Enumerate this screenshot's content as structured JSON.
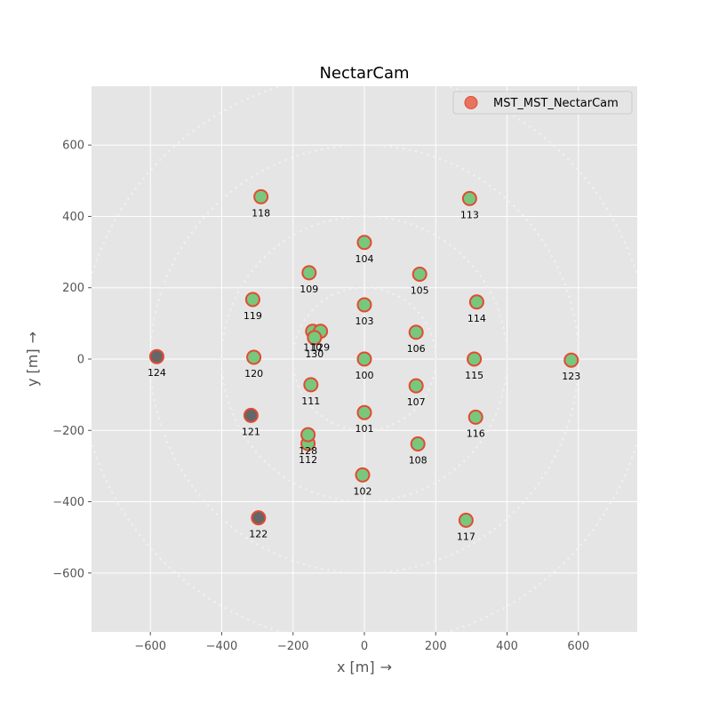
{
  "chart_data": {
    "type": "scatter",
    "title": "NectarCam",
    "xlabel": "x [m]",
    "ylabel": "y [m]",
    "arrow": "→",
    "xlim": [
      -765,
      765
    ],
    "ylim": [
      -765,
      765
    ],
    "xticks": [
      -600,
      -400,
      -200,
      0,
      200,
      400,
      600
    ],
    "yticks": [
      -600,
      -400,
      -200,
      0,
      200,
      400,
      600
    ],
    "grid": true,
    "legend_position": "top-right",
    "series": [
      {
        "name": "MST_MST_NectarCam"
      }
    ],
    "circles_radii": [
      200,
      400,
      600,
      800
    ],
    "colors": {
      "plot_bg": "#e5e5e5",
      "grid": "#ffffff",
      "marker_edge": "#e24a33",
      "marker_fill_active": "#77c87d",
      "marker_fill_inactive": "#666666",
      "legend_marker": "#e8735f"
    },
    "telescopes": [
      {
        "id": "100",
        "x": 0,
        "y": 0,
        "active": true
      },
      {
        "id": "101",
        "x": 0,
        "y": -150,
        "active": true
      },
      {
        "id": "102",
        "x": -5,
        "y": -325,
        "active": true
      },
      {
        "id": "103",
        "x": 0,
        "y": 152,
        "active": true
      },
      {
        "id": "104",
        "x": 0,
        "y": 327,
        "active": true
      },
      {
        "id": "105",
        "x": 155,
        "y": 238,
        "active": true
      },
      {
        "id": "106",
        "x": 145,
        "y": 75,
        "active": true
      },
      {
        "id": "107",
        "x": 145,
        "y": -75,
        "active": true
      },
      {
        "id": "108",
        "x": 150,
        "y": -238,
        "active": true
      },
      {
        "id": "109",
        "x": -155,
        "y": 242,
        "active": true
      },
      {
        "id": "110",
        "x": -145,
        "y": 78,
        "active": true
      },
      {
        "id": "111",
        "x": -150,
        "y": -72,
        "active": true
      },
      {
        "id": "112",
        "x": -158,
        "y": -237,
        "active": true
      },
      {
        "id": "113",
        "x": 295,
        "y": 450,
        "active": true
      },
      {
        "id": "114",
        "x": 315,
        "y": 160,
        "active": true
      },
      {
        "id": "115",
        "x": 308,
        "y": 0,
        "active": true
      },
      {
        "id": "116",
        "x": 312,
        "y": -163,
        "active": true
      },
      {
        "id": "117",
        "x": 285,
        "y": -452,
        "active": true
      },
      {
        "id": "118",
        "x": -290,
        "y": 455,
        "active": true
      },
      {
        "id": "119",
        "x": -313,
        "y": 167,
        "active": true
      },
      {
        "id": "120",
        "x": -310,
        "y": 5,
        "active": true
      },
      {
        "id": "121",
        "x": -318,
        "y": -158,
        "active": false
      },
      {
        "id": "122",
        "x": -297,
        "y": -445,
        "active": false
      },
      {
        "id": "123",
        "x": 580,
        "y": -3,
        "active": true
      },
      {
        "id": "124",
        "x": -582,
        "y": 7,
        "active": false
      },
      {
        "id": "128",
        "x": -158,
        "y": -212,
        "active": true
      },
      {
        "id": "129",
        "x": -123,
        "y": 78,
        "active": true
      },
      {
        "id": "130",
        "x": -140,
        "y": 60,
        "active": true
      }
    ]
  }
}
